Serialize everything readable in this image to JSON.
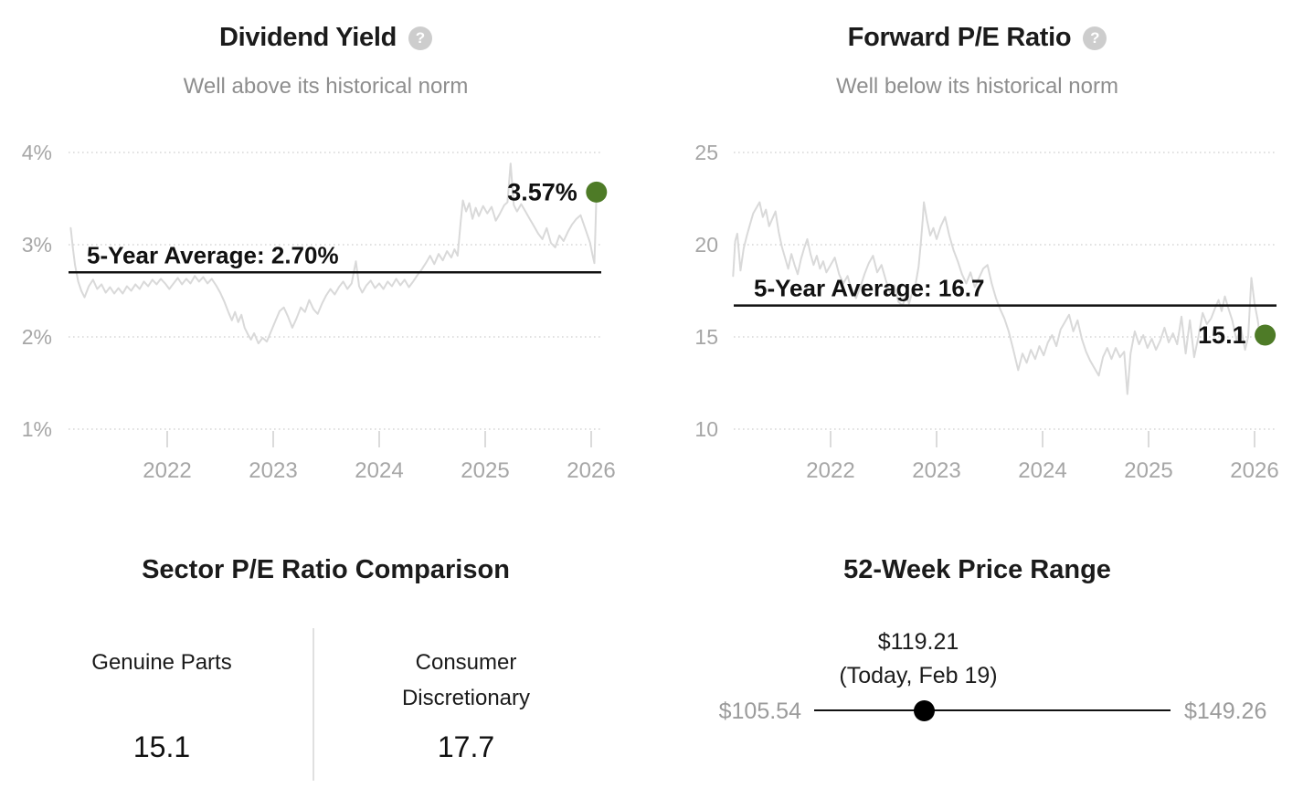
{
  "colors": {
    "accent_green": "#4e7b27",
    "chart_line": "#d9d9d9",
    "grid_line": "#cfcfcf",
    "axis_text": "#a6a6a6",
    "average_line": "#111111",
    "slider_line": "#111111",
    "slider_handle": "#000000",
    "muted_text": "#8e8e8e",
    "help_icon_bg": "#cdcdcd"
  },
  "panels": {
    "dividend_yield": {
      "title": "Dividend Yield",
      "subtitle": "Well above its historical norm",
      "help_icon": "?"
    },
    "forward_pe": {
      "title": "Forward P/E Ratio",
      "subtitle": "Well below its historical norm",
      "help_icon": "?"
    },
    "sector_pe": {
      "title": "Sector P/E Ratio Comparison",
      "columns": [
        {
          "label": "Genuine Parts",
          "value": "15.1"
        },
        {
          "label": "Consumer Discretionary",
          "value": "17.7"
        }
      ]
    },
    "price_range": {
      "title": "52-Week Price Range",
      "current_price": "$119.21",
      "current_note": "(Today, Feb 19)",
      "low": "$105.54",
      "high": "$149.26",
      "marker_position_pct": 31
    }
  },
  "chart_data": [
    {
      "type": "line",
      "title": "Dividend Yield",
      "subtitle": "Well above its historical norm",
      "ylabel": "Dividend Yield (%)",
      "ylim": [
        1,
        4
      ],
      "x_range": [
        2021.09,
        2026.05
      ],
      "grid": "dotted-horizontal",
      "yticks": [
        {
          "value": 4,
          "label": "4%"
        },
        {
          "value": 3,
          "label": "3%"
        },
        {
          "value": 2,
          "label": "2%"
        },
        {
          "value": 1,
          "label": "1%"
        }
      ],
      "xticks": [
        {
          "year": 2022,
          "label": "2022"
        },
        {
          "year": 2023,
          "label": "2023"
        },
        {
          "year": 2024,
          "label": "2024"
        },
        {
          "year": 2025,
          "label": "2025"
        },
        {
          "year": 2026,
          "label": "2026"
        }
      ],
      "average": {
        "label": "5-Year Average: 2.70%",
        "value": 2.7
      },
      "current": {
        "label": "3.57%",
        "value": 3.57
      },
      "points": [
        [
          2021.09,
          3.18
        ],
        [
          2021.11,
          2.96
        ],
        [
          2021.13,
          2.78
        ],
        [
          2021.16,
          2.6
        ],
        [
          2021.19,
          2.5
        ],
        [
          2021.22,
          2.43
        ],
        [
          2021.26,
          2.55
        ],
        [
          2021.3,
          2.62
        ],
        [
          2021.34,
          2.52
        ],
        [
          2021.38,
          2.57
        ],
        [
          2021.42,
          2.48
        ],
        [
          2021.46,
          2.54
        ],
        [
          2021.5,
          2.47
        ],
        [
          2021.54,
          2.53
        ],
        [
          2021.58,
          2.47
        ],
        [
          2021.62,
          2.55
        ],
        [
          2021.66,
          2.5
        ],
        [
          2021.7,
          2.57
        ],
        [
          2021.74,
          2.52
        ],
        [
          2021.78,
          2.6
        ],
        [
          2021.82,
          2.55
        ],
        [
          2021.86,
          2.62
        ],
        [
          2021.9,
          2.57
        ],
        [
          2021.94,
          2.63
        ],
        [
          2021.98,
          2.58
        ],
        [
          2022.02,
          2.52
        ],
        [
          2022.06,
          2.58
        ],
        [
          2022.1,
          2.64
        ],
        [
          2022.14,
          2.57
        ],
        [
          2022.18,
          2.63
        ],
        [
          2022.22,
          2.58
        ],
        [
          2022.26,
          2.66
        ],
        [
          2022.3,
          2.6
        ],
        [
          2022.34,
          2.65
        ],
        [
          2022.38,
          2.58
        ],
        [
          2022.42,
          2.63
        ],
        [
          2022.46,
          2.56
        ],
        [
          2022.5,
          2.48
        ],
        [
          2022.54,
          2.38
        ],
        [
          2022.58,
          2.26
        ],
        [
          2022.61,
          2.18
        ],
        [
          2022.64,
          2.27
        ],
        [
          2022.67,
          2.16
        ],
        [
          2022.7,
          2.24
        ],
        [
          2022.73,
          2.1
        ],
        [
          2022.76,
          2.03
        ],
        [
          2022.79,
          1.97
        ],
        [
          2022.82,
          2.04
        ],
        [
          2022.86,
          1.93
        ],
        [
          2022.9,
          1.99
        ],
        [
          2022.94,
          1.95
        ],
        [
          2022.98,
          2.06
        ],
        [
          2023.02,
          2.17
        ],
        [
          2023.06,
          2.28
        ],
        [
          2023.1,
          2.32
        ],
        [
          2023.14,
          2.22
        ],
        [
          2023.18,
          2.1
        ],
        [
          2023.22,
          2.2
        ],
        [
          2023.26,
          2.32
        ],
        [
          2023.3,
          2.27
        ],
        [
          2023.34,
          2.4
        ],
        [
          2023.38,
          2.3
        ],
        [
          2023.42,
          2.25
        ],
        [
          2023.46,
          2.36
        ],
        [
          2023.5,
          2.45
        ],
        [
          2023.54,
          2.52
        ],
        [
          2023.58,
          2.46
        ],
        [
          2023.62,
          2.54
        ],
        [
          2023.66,
          2.6
        ],
        [
          2023.7,
          2.52
        ],
        [
          2023.74,
          2.58
        ],
        [
          2023.78,
          2.82
        ],
        [
          2023.81,
          2.55
        ],
        [
          2023.84,
          2.48
        ],
        [
          2023.88,
          2.56
        ],
        [
          2023.92,
          2.61
        ],
        [
          2023.96,
          2.53
        ],
        [
          2024.0,
          2.58
        ],
        [
          2024.04,
          2.52
        ],
        [
          2024.08,
          2.6
        ],
        [
          2024.12,
          2.55
        ],
        [
          2024.16,
          2.63
        ],
        [
          2024.2,
          2.56
        ],
        [
          2024.24,
          2.62
        ],
        [
          2024.28,
          2.54
        ],
        [
          2024.32,
          2.6
        ],
        [
          2024.36,
          2.67
        ],
        [
          2024.4,
          2.73
        ],
        [
          2024.44,
          2.8
        ],
        [
          2024.48,
          2.88
        ],
        [
          2024.52,
          2.79
        ],
        [
          2024.56,
          2.9
        ],
        [
          2024.6,
          2.83
        ],
        [
          2024.64,
          2.93
        ],
        [
          2024.68,
          2.86
        ],
        [
          2024.71,
          2.95
        ],
        [
          2024.74,
          2.88
        ],
        [
          2024.77,
          3.26
        ],
        [
          2024.79,
          3.48
        ],
        [
          2024.82,
          3.36
        ],
        [
          2024.85,
          3.45
        ],
        [
          2024.88,
          3.28
        ],
        [
          2024.91,
          3.4
        ],
        [
          2024.94,
          3.31
        ],
        [
          2024.98,
          3.42
        ],
        [
          2025.02,
          3.34
        ],
        [
          2025.06,
          3.41
        ],
        [
          2025.1,
          3.26
        ],
        [
          2025.14,
          3.34
        ],
        [
          2025.18,
          3.43
        ],
        [
          2025.21,
          3.46
        ],
        [
          2025.24,
          3.88
        ],
        [
          2025.27,
          3.43
        ],
        [
          2025.3,
          3.36
        ],
        [
          2025.34,
          3.44
        ],
        [
          2025.38,
          3.36
        ],
        [
          2025.42,
          3.28
        ],
        [
          2025.46,
          3.2
        ],
        [
          2025.5,
          3.12
        ],
        [
          2025.54,
          3.06
        ],
        [
          2025.58,
          3.18
        ],
        [
          2025.62,
          3.02
        ],
        [
          2025.66,
          2.97
        ],
        [
          2025.7,
          3.1
        ],
        [
          2025.74,
          3.04
        ],
        [
          2025.78,
          3.14
        ],
        [
          2025.82,
          3.22
        ],
        [
          2025.86,
          3.28
        ],
        [
          2025.9,
          3.32
        ],
        [
          2025.93,
          3.22
        ],
        [
          2025.96,
          3.12
        ],
        [
          2025.99,
          3.02
        ],
        [
          2026.01,
          2.9
        ],
        [
          2026.03,
          2.8
        ],
        [
          2026.04,
          3.15
        ],
        [
          2026.05,
          3.57
        ]
      ]
    },
    {
      "type": "line",
      "title": "Forward P/E Ratio",
      "subtitle": "Well below its historical norm",
      "ylabel": "Forward P/E Ratio",
      "ylim": [
        10,
        25
      ],
      "x_range": [
        2021.08,
        2026.1
      ],
      "grid": "dotted-horizontal",
      "yticks": [
        {
          "value": 25,
          "label": "25"
        },
        {
          "value": 20,
          "label": "20"
        },
        {
          "value": 15,
          "label": "15"
        },
        {
          "value": 10,
          "label": "10"
        }
      ],
      "xticks": [
        {
          "year": 2022,
          "label": "2022"
        },
        {
          "year": 2023,
          "label": "2023"
        },
        {
          "year": 2024,
          "label": "2024"
        },
        {
          "year": 2025,
          "label": "2025"
        },
        {
          "year": 2026,
          "label": "2026"
        }
      ],
      "average": {
        "label": "5-Year Average: 16.7",
        "value": 16.7
      },
      "current": {
        "label": "15.1",
        "value": 15.1
      },
      "points": [
        [
          2021.08,
          18.3
        ],
        [
          2021.1,
          20.2
        ],
        [
          2021.12,
          20.6
        ],
        [
          2021.15,
          18.6
        ],
        [
          2021.18,
          19.8
        ],
        [
          2021.21,
          20.5
        ],
        [
          2021.24,
          21.1
        ],
        [
          2021.27,
          21.7
        ],
        [
          2021.3,
          22.0
        ],
        [
          2021.33,
          22.3
        ],
        [
          2021.36,
          21.5
        ],
        [
          2021.39,
          21.9
        ],
        [
          2021.42,
          21.0
        ],
        [
          2021.45,
          21.4
        ],
        [
          2021.48,
          21.8
        ],
        [
          2021.51,
          20.7
        ],
        [
          2021.54,
          19.9
        ],
        [
          2021.57,
          19.3
        ],
        [
          2021.6,
          18.7
        ],
        [
          2021.63,
          19.5
        ],
        [
          2021.66,
          18.9
        ],
        [
          2021.69,
          18.4
        ],
        [
          2021.72,
          19.2
        ],
        [
          2021.75,
          19.8
        ],
        [
          2021.78,
          20.3
        ],
        [
          2021.81,
          19.5
        ],
        [
          2021.84,
          18.9
        ],
        [
          2021.87,
          19.4
        ],
        [
          2021.9,
          18.7
        ],
        [
          2021.93,
          19.1
        ],
        [
          2021.96,
          18.5
        ],
        [
          2022.0,
          18.9
        ],
        [
          2022.04,
          19.3
        ],
        [
          2022.08,
          18.4
        ],
        [
          2022.12,
          17.9
        ],
        [
          2022.16,
          18.3
        ],
        [
          2022.2,
          17.5
        ],
        [
          2022.24,
          17.1
        ],
        [
          2022.28,
          17.7
        ],
        [
          2022.32,
          18.4
        ],
        [
          2022.36,
          19.0
        ],
        [
          2022.4,
          19.4
        ],
        [
          2022.44,
          18.5
        ],
        [
          2022.48,
          18.9
        ],
        [
          2022.52,
          18.1
        ],
        [
          2022.56,
          17.4
        ],
        [
          2022.6,
          17.8
        ],
        [
          2022.64,
          16.9
        ],
        [
          2022.68,
          16.7
        ],
        [
          2022.71,
          17.3
        ],
        [
          2022.74,
          16.8
        ],
        [
          2022.77,
          17.4
        ],
        [
          2022.8,
          17.8
        ],
        [
          2022.83,
          18.8
        ],
        [
          2022.85,
          20.0
        ],
        [
          2022.87,
          21.4
        ],
        [
          2022.88,
          22.3
        ],
        [
          2022.91,
          21.3
        ],
        [
          2022.94,
          20.5
        ],
        [
          2022.97,
          20.9
        ],
        [
          2023.0,
          20.3
        ],
        [
          2023.04,
          21.0
        ],
        [
          2023.08,
          21.5
        ],
        [
          2023.12,
          20.5
        ],
        [
          2023.16,
          19.7
        ],
        [
          2023.2,
          19.1
        ],
        [
          2023.24,
          18.4
        ],
        [
          2023.28,
          17.9
        ],
        [
          2023.32,
          18.5
        ],
        [
          2023.36,
          17.7
        ],
        [
          2023.4,
          18.2
        ],
        [
          2023.44,
          18.7
        ],
        [
          2023.48,
          18.9
        ],
        [
          2023.52,
          17.9
        ],
        [
          2023.56,
          17.1
        ],
        [
          2023.6,
          16.5
        ],
        [
          2023.64,
          16.0
        ],
        [
          2023.68,
          15.3
        ],
        [
          2023.72,
          14.4
        ],
        [
          2023.77,
          13.2
        ],
        [
          2023.81,
          14.1
        ],
        [
          2023.85,
          13.6
        ],
        [
          2023.89,
          14.3
        ],
        [
          2023.93,
          13.8
        ],
        [
          2023.97,
          14.5
        ],
        [
          2024.01,
          14.0
        ],
        [
          2024.05,
          14.7
        ],
        [
          2024.09,
          15.1
        ],
        [
          2024.13,
          14.5
        ],
        [
          2024.17,
          15.4
        ],
        [
          2024.21,
          15.8
        ],
        [
          2024.25,
          16.2
        ],
        [
          2024.29,
          15.3
        ],
        [
          2024.33,
          15.9
        ],
        [
          2024.37,
          14.9
        ],
        [
          2024.41,
          14.2
        ],
        [
          2024.45,
          13.7
        ],
        [
          2024.49,
          13.3
        ],
        [
          2024.53,
          12.9
        ],
        [
          2024.57,
          13.9
        ],
        [
          2024.61,
          14.4
        ],
        [
          2024.65,
          13.8
        ],
        [
          2024.69,
          14.4
        ],
        [
          2024.73,
          13.9
        ],
        [
          2024.77,
          14.2
        ],
        [
          2024.8,
          11.9
        ],
        [
          2024.83,
          14.1
        ],
        [
          2024.87,
          15.3
        ],
        [
          2024.91,
          14.6
        ],
        [
          2024.95,
          15.1
        ],
        [
          2024.99,
          14.4
        ],
        [
          2025.03,
          14.9
        ],
        [
          2025.07,
          14.3
        ],
        [
          2025.11,
          14.8
        ],
        [
          2025.15,
          15.5
        ],
        [
          2025.19,
          14.7
        ],
        [
          2025.23,
          15.2
        ],
        [
          2025.27,
          14.6
        ],
        [
          2025.31,
          16.1
        ],
        [
          2025.35,
          14.1
        ],
        [
          2025.39,
          15.9
        ],
        [
          2025.43,
          13.9
        ],
        [
          2025.47,
          15.0
        ],
        [
          2025.51,
          16.3
        ],
        [
          2025.55,
          15.7
        ],
        [
          2025.59,
          16.0
        ],
        [
          2025.63,
          16.6
        ],
        [
          2025.66,
          17.0
        ],
        [
          2025.69,
          16.4
        ],
        [
          2025.72,
          17.2
        ],
        [
          2025.75,
          16.6
        ],
        [
          2025.79,
          15.9
        ],
        [
          2025.83,
          14.8
        ],
        [
          2025.87,
          15.5
        ],
        [
          2025.91,
          14.3
        ],
        [
          2025.94,
          15.0
        ],
        [
          2025.97,
          18.2
        ],
        [
          2026.0,
          16.8
        ],
        [
          2026.03,
          15.9
        ],
        [
          2026.06,
          14.6
        ],
        [
          2026.08,
          15.2
        ],
        [
          2026.1,
          15.1
        ]
      ]
    }
  ]
}
